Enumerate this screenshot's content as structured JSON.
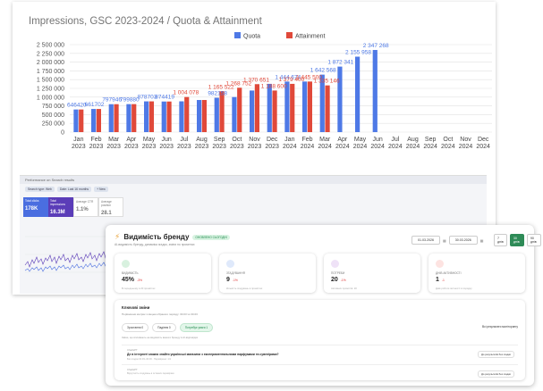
{
  "chart_data": {
    "type": "bar",
    "title": "Impressions, GSC 2023-2024 / Quota & Attainment",
    "categories": [
      "Jan 2023",
      "Feb 2023",
      "Mar 2023",
      "Apr 2023",
      "May 2023",
      "Jun 2023",
      "Jul 2023",
      "Aug 2023",
      "Sep 2023",
      "Oct 2023",
      "Nov 2023",
      "Dec 2023",
      "Jan 2024",
      "Feb 2024",
      "Mar 2024",
      "Apr 2024",
      "May 2024",
      "Jun 2024",
      "Jul 2024",
      "Aug 2024",
      "Sep 2024",
      "Oct 2024",
      "Nov 2024",
      "Dec 2024"
    ],
    "series": [
      {
        "name": "Quota",
        "color": "#4e79e6",
        "values": [
          646420,
          661702,
          797946,
          799880,
          878703,
          874419,
          879900,
          917928,
          982158,
          1002691,
          1188633,
          1379400,
          1444674,
          1445500,
          1642568,
          1872341,
          2155958,
          2347268,
          null,
          null,
          null,
          null,
          null,
          null
        ],
        "labels": [
          "646420",
          "661702",
          "797946",
          "799880",
          "878703",
          "874419",
          "",
          "",
          "982158",
          "",
          "",
          "",
          "1 444 674",
          "",
          "1 642 568",
          "1 872 341",
          "2 155 958",
          "2 347 268",
          "",
          "",
          "",
          "",
          "",
          ""
        ]
      },
      {
        "name": "Attainment",
        "color": "#e0493a",
        "values": [
          646420,
          661702,
          797946,
          799880,
          878703,
          874419,
          1004078,
          917928,
          1165522,
          1268752,
          1370651,
          1188600,
          1379400,
          1445500,
          1335146,
          null,
          null,
          null,
          null,
          null,
          null,
          null,
          null,
          null
        ],
        "labels": [
          "",
          "",
          "",
          "",
          "",
          "",
          "1 004 078",
          "",
          "1 165 522",
          "1 268 752",
          "1 370 651",
          "1 188 600",
          "1 379 400",
          "1 445 500",
          "1 335 146",
          "",
          "",
          "",
          "",
          "",
          "",
          "",
          "",
          ""
        ]
      }
    ],
    "yticks": [
      "0",
      "250 000",
      "500 000",
      "750 000",
      "1 000 000",
      "1 250 000",
      "1 500 000",
      "1 750 000",
      "2 000 000",
      "2 250 000",
      "2 500 000"
    ],
    "ylim": [
      0,
      2500000
    ],
    "legend": "top-center",
    "grid": true
  },
  "gsc": {
    "title": "Performance on Search results",
    "chip_1": "Search type: Web",
    "chip_2": "Date: Last 16 months",
    "chip_3": "+ New",
    "metric_1_label": "Total clicks",
    "metric_1_value": "178K",
    "metric_2_label": "Total impressions",
    "metric_2_value": "16.3M",
    "metric_3_label": "Average CTR",
    "metric_3_value": "1.1%",
    "metric_4_label": "Average position",
    "metric_4_value": "28.1"
  },
  "brand": {
    "title": "Видимість бренду",
    "badge": "ОНОВЛЕНО СЬОГОДНІ",
    "subtitle": "AI-видимість бренду, динаміка згадок, зміни по промптах",
    "date_from": "01.03.2026",
    "date_to": "30.03.2026",
    "range_7": "7 днів",
    "range_30": "30 днів",
    "range_90": "90 днів",
    "kpis": [
      {
        "label": "ВИДИМІСТЬ",
        "value": "45%",
        "delta": "-3%",
        "foot": "В середньому в 20 промптах",
        "color": "#d8f1df"
      },
      {
        "label": "ЗГАДУВАННЯ",
        "value": "9",
        "delta": "-1%",
        "foot": "Кількість згадувань в промптах",
        "color": "#dfe9fb"
      },
      {
        "label": "ПОТРЕБИ",
        "value": "20",
        "delta": "-1%",
        "foot": "Активних промптів: 20",
        "color": "#efe2f7"
      },
      {
        "label": "ДНІВ АКТИВНОСТІ",
        "value": "1",
        "delta": "-1",
        "foot": "Днів роботи звітності в порядку",
        "color": "#fde3e1"
      }
    ],
    "section_title": "Ключові зміни",
    "section_subtitle": "Порівняння метрик з кінцем обраного періоду: 30.03 vs 30.03",
    "all_prompts": "Всі результати моніторингу",
    "pill_1": "Зростання 0",
    "pill_2": "Падіння 0",
    "pill_3": "Потребує уваги 1",
    "note": "Зміни, що впливають на видимість вашого бренду в AI-відповідях",
    "item_source": "ChatGPT",
    "item_question": "Де в інтернеті можна знайти українські магазини з експериментальними парфумами та сувенірами?",
    "item_meta": "Без згадок 04.03–30.03 · Перевірено: 1/1",
    "item_action": "До результатів без згадки",
    "item2_source": "ChatGPT",
    "item2_meta": "Відсутність згадувань в останніх перевірках"
  }
}
